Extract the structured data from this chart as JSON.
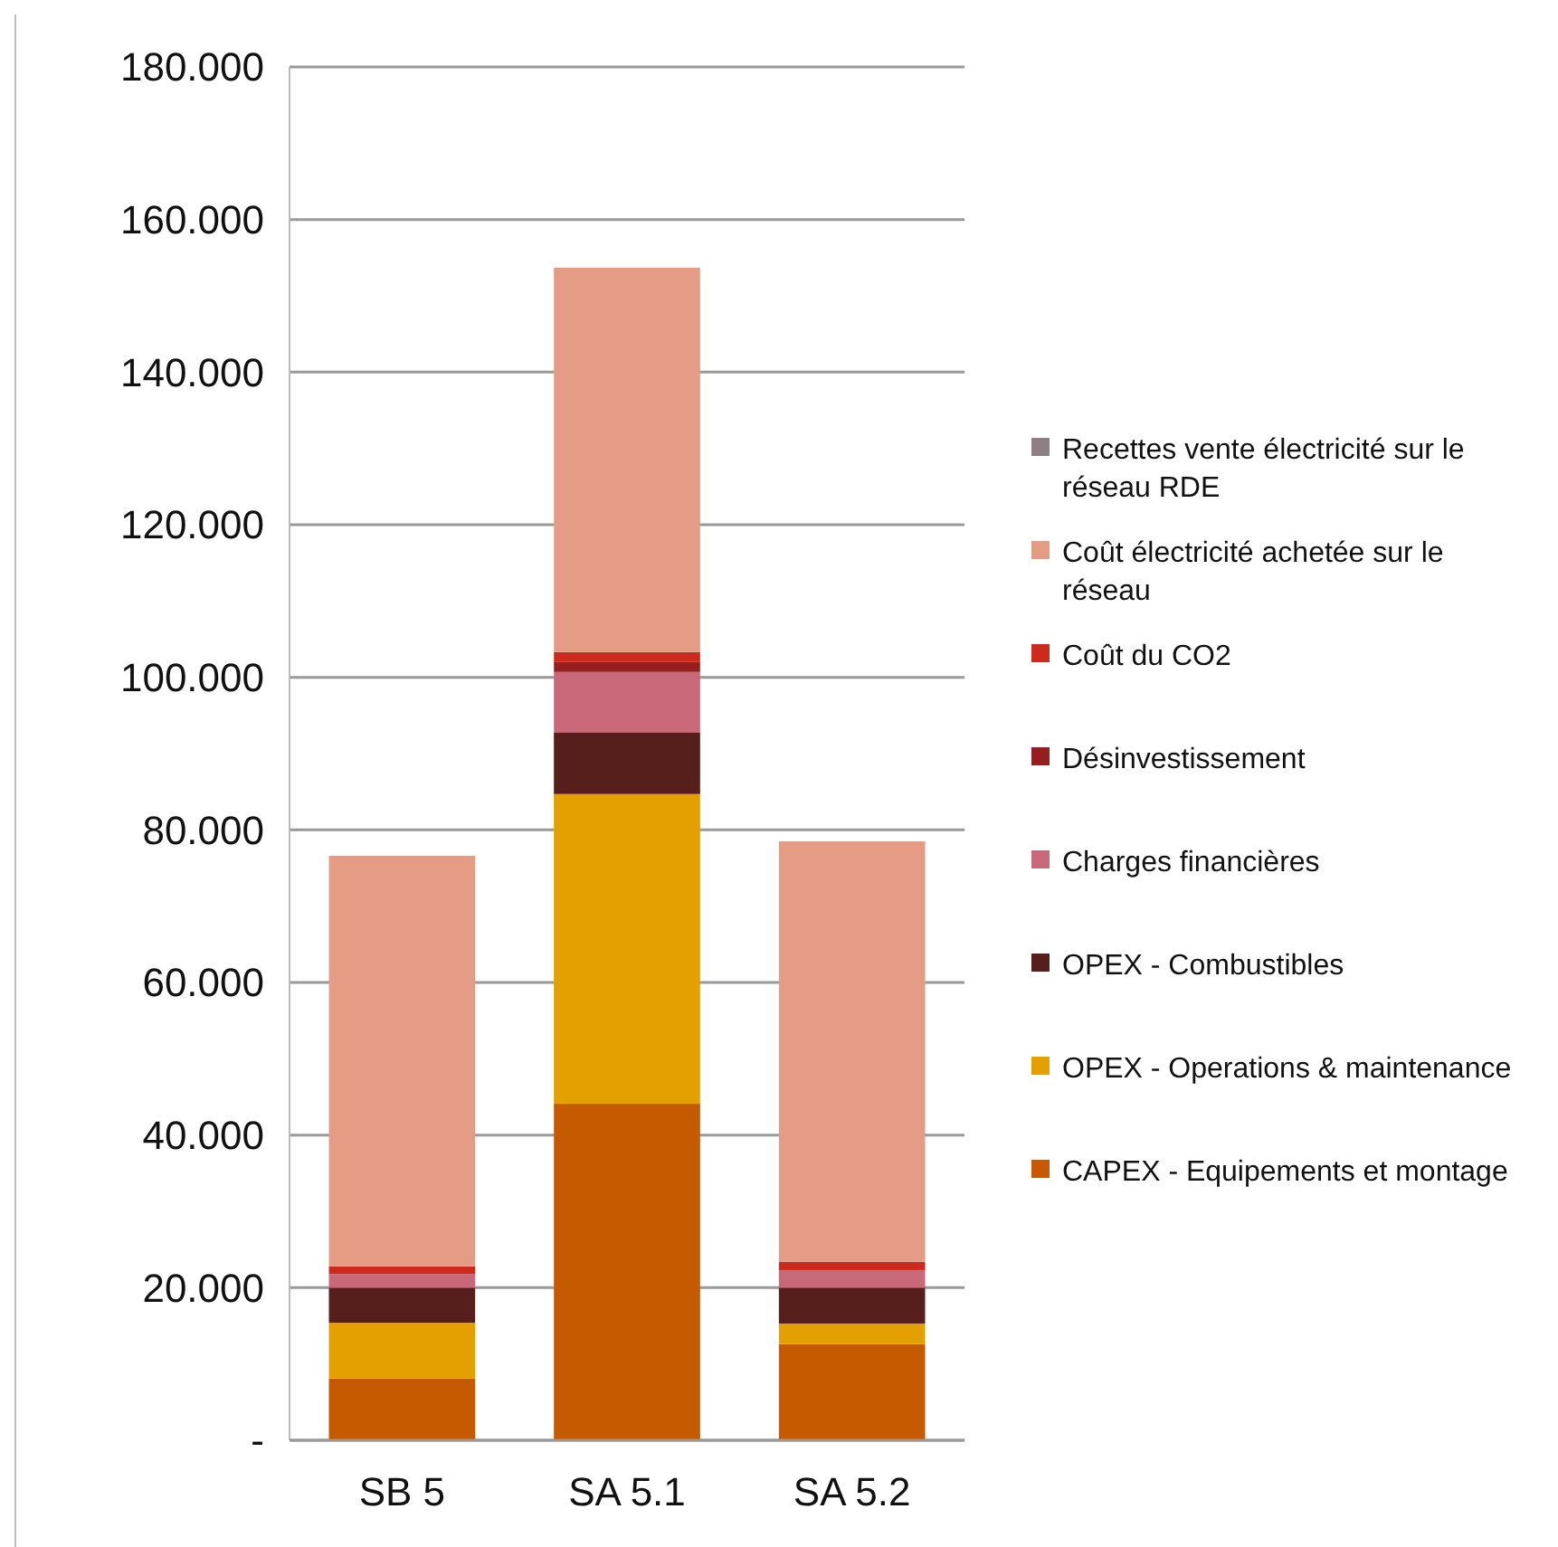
{
  "chart_data": {
    "type": "bar",
    "stacked": true,
    "categories": [
      "SB 5",
      "SA 5.1",
      "SA 5.2"
    ],
    "series": [
      {
        "name": "CAPEX - Equipements et montage",
        "color": "#c55a00",
        "values": [
          8.1,
          44.1,
          12.6
        ]
      },
      {
        "name": "OPEX - Operations & maintenance",
        "color": "#e3a000",
        "values": [
          7.3,
          40.6,
          2.7
        ]
      },
      {
        "name": "OPEX - Combustibles",
        "color": "#561f1c",
        "values": [
          4.6,
          8.1,
          4.7
        ]
      },
      {
        "name": "Charges financières",
        "color": "#c86878",
        "values": [
          1.8,
          7.9,
          2.3
        ]
      },
      {
        "name": "Désinvestissement",
        "color": "#961d20",
        "values": [
          0,
          1.3,
          0
        ]
      },
      {
        "name": "Coût du CO2",
        "color": "#cc2a1c",
        "values": [
          1.0,
          1.3,
          1.1
        ]
      },
      {
        "name": "Coût électricité achetée sur le réseau",
        "color": "#e49d84",
        "values": [
          53.8,
          50.4,
          55.1
        ]
      },
      {
        "name": "Recettes vente électricité sur le réseau RDE",
        "color": "#8e7f85",
        "values": [
          0,
          0,
          0
        ]
      }
    ],
    "ylim": [
      0,
      180
    ],
    "yticks": [
      {
        "value": 0,
        "label": "-"
      },
      {
        "value": 20,
        "label": "20.000"
      },
      {
        "value": 40,
        "label": "40.000"
      },
      {
        "value": 60,
        "label": "60.000"
      },
      {
        "value": 80,
        "label": "80.000"
      },
      {
        "value": 100,
        "label": "100.000"
      },
      {
        "value": 120,
        "label": "120.000"
      },
      {
        "value": 140,
        "label": "140.000"
      },
      {
        "value": 160,
        "label": "160.000"
      },
      {
        "value": 180,
        "label": "180.000"
      }
    ],
    "grid": "y",
    "legend": "right"
  }
}
